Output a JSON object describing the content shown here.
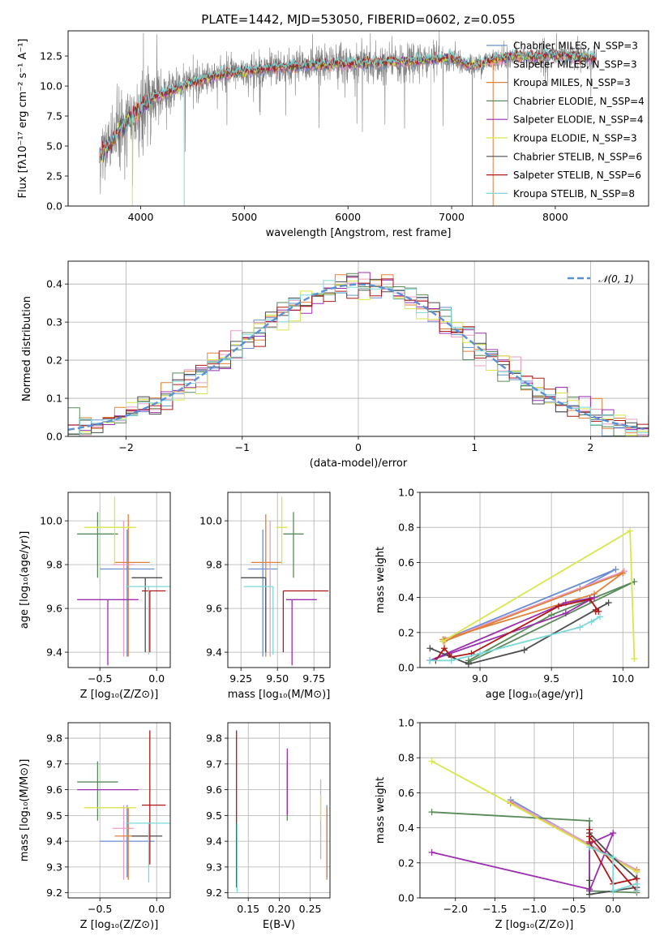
{
  "chart_data": [
    {
      "type": "line",
      "title": "PLATE=1442, MJD=53050, FIBERID=0602, z=0.055",
      "xlabel": "wavelength [Angstrom, rest frame]",
      "ylabel": "Flux [fλ10⁻¹⁷ erg cm⁻² s⁻¹ A⁻¹]",
      "xlim": [
        3300,
        8900
      ],
      "ylim": [
        0,
        14.6
      ],
      "xticks": [
        4000,
        5000,
        6000,
        7000,
        8000
      ],
      "yticks": [
        "0.0",
        "2.5",
        "5.0",
        "7.5",
        "10.0",
        "12.5"
      ],
      "grid": false,
      "legend_position": "right",
      "data_range_x": [
        3600,
        8400
      ],
      "spectrum_envelope": {
        "x": [
          3600,
          3700,
          3800,
          3900,
          4000,
          4100,
          4300,
          4500,
          4700,
          5000,
          5300,
          5600,
          5900,
          6200,
          6500,
          6800,
          7000,
          7200,
          7400,
          7600,
          7800,
          8000,
          8200,
          8400
        ],
        "y": [
          4.2,
          5.1,
          6.3,
          7.2,
          8.1,
          9.0,
          9.6,
          10.3,
          10.8,
          11.2,
          11.5,
          11.7,
          11.8,
          11.9,
          12.0,
          12.2,
          12.3,
          11.6,
          12.2,
          12.5,
          12.4,
          12.6,
          12.4,
          12.2
        ]
      },
      "series": [
        {
          "name": "Chabrier MILES, N_SSP=3",
          "color": "#6a8fd1"
        },
        {
          "name": "Salpeter MILES, N_SSP=3",
          "color": "#e89ec7"
        },
        {
          "name": "Kroupa MILES, N_SSP=3",
          "color": "#e0813a"
        },
        {
          "name": "Chabrier ELODIE, N_SSP=4",
          "color": "#5a8a5a"
        },
        {
          "name": "Salpeter ELODIE, N_SSP=4",
          "color": "#9b2fb0"
        },
        {
          "name": "Kroupa ELODIE, N_SSP=3",
          "color": "#d9e64a"
        },
        {
          "name": "Chabrier STELIB, N_SSP=6",
          "color": "#4d4d4d"
        },
        {
          "name": "Salpeter STELIB, N_SSP=6",
          "color": "#b01717"
        },
        {
          "name": "Kroupa STELIB, N_SSP=8",
          "color": "#7ad8d8"
        }
      ],
      "data_color": "#808080"
    },
    {
      "type": "line",
      "xlabel": "(data-model)/error",
      "ylabel": "Normed distribution",
      "xlim": [
        -2.5,
        2.5
      ],
      "ylim": [
        0,
        0.46
      ],
      "xticks": [
        "−2",
        "−1",
        "0",
        "1",
        "2"
      ],
      "yticks": [
        "0.0",
        "0.1",
        "0.2",
        "0.3",
        "0.4"
      ],
      "grid": true,
      "legend_position": "top-right",
      "legend": "𝒩(0, 1)",
      "bin_width": 0.1,
      "reference_curve": {
        "mean": 0,
        "sigma": 1,
        "color": "#5b8fd6"
      }
    },
    {
      "type": "scatter",
      "xlabel": "Z [log₁₀(Z/Z⊙)]",
      "ylabel": "age  [log₁₀(age/yr)]",
      "xlim": [
        -0.78,
        0.12
      ],
      "ylim": [
        9.33,
        10.13
      ],
      "xticks": [
        "−0.5",
        "0.0"
      ],
      "yticks": [
        "9.4",
        "9.6",
        "9.8",
        "10.0"
      ],
      "grid": true,
      "points": [
        {
          "series": "Chabrier MILES",
          "x": -0.26,
          "xerr": [
            0.24,
            0.24
          ],
          "y": 9.78,
          "yerr": [
            0.4,
            0.18
          ]
        },
        {
          "series": "Salpeter MILES",
          "x": -0.29,
          "xerr": [
            0.1,
            0.09
          ],
          "y": 9.8,
          "yerr": [
            0.42,
            0.2
          ]
        },
        {
          "series": "Kroupa MILES",
          "x": -0.25,
          "xerr": [
            0.12,
            0.19
          ],
          "y": 9.81,
          "yerr": [
            0.43,
            0.22
          ]
        },
        {
          "series": "Chabrier ELODIE",
          "x": -0.52,
          "xerr": [
            0.18,
            0.18
          ],
          "y": 9.94,
          "yerr": [
            0.2,
            0.1
          ]
        },
        {
          "series": "Salpeter ELODIE",
          "x": -0.43,
          "xerr": [
            0.27,
            0.27
          ],
          "y": 9.64,
          "yerr": [
            0.3,
            0.0
          ]
        },
        {
          "series": "Kroupa ELODIE",
          "x": -0.37,
          "xerr": [
            0.27,
            0.19
          ],
          "y": 9.97,
          "yerr": [
            0.17,
            0.14
          ]
        },
        {
          "series": "Chabrier STELIB",
          "x": -0.1,
          "xerr": [
            0.12,
            0.15
          ],
          "y": 9.74,
          "yerr": [
            0.34,
            0.0
          ]
        },
        {
          "series": "Salpeter STELIB",
          "x": -0.06,
          "xerr": [
            0.07,
            0.14
          ],
          "y": 9.68,
          "yerr": [
            0.28,
            0.0
          ]
        },
        {
          "series": "Kroupa STELIB",
          "x": -0.07,
          "xerr": [
            0.2,
            0.19
          ],
          "y": 9.7,
          "yerr": [
            0.31,
            0.0
          ]
        }
      ]
    },
    {
      "type": "scatter",
      "xlabel": "mass [log₁₀(M/M⊙)]",
      "ylabel": "",
      "xlim": [
        9.16,
        9.86
      ],
      "ylim": [
        9.33,
        10.13
      ],
      "xticks": [
        "9.25",
        "9.50",
        "9.75"
      ],
      "yticks": [
        "9.4",
        "9.6",
        "9.8",
        "10.0"
      ],
      "grid": true,
      "points": [
        {
          "series": "Chabrier MILES",
          "x": 9.4,
          "xerr": [
            0.1,
            0.1
          ],
          "y": 9.78,
          "yerr": [
            0.4,
            0.18
          ]
        },
        {
          "series": "Salpeter MILES",
          "x": 9.45,
          "xerr": [
            0.0,
            0.0
          ],
          "y": 9.8,
          "yerr": [
            0.42,
            0.2
          ]
        },
        {
          "series": "Kroupa MILES",
          "x": 9.42,
          "xerr": [
            0.1,
            0.11
          ],
          "y": 9.81,
          "yerr": [
            0.43,
            0.22
          ]
        },
        {
          "series": "Chabrier ELODIE",
          "x": 9.61,
          "xerr": [
            0.07,
            0.07
          ],
          "y": 9.94,
          "yerr": [
            0.2,
            0.1
          ]
        },
        {
          "series": "Salpeter ELODIE",
          "x": 9.6,
          "xerr": [
            0.04,
            0.17
          ],
          "y": 9.64,
          "yerr": [
            0.3,
            0.0
          ]
        },
        {
          "series": "Kroupa ELODIE",
          "x": 9.53,
          "xerr": [
            0.04,
            0.04
          ],
          "y": 9.97,
          "yerr": [
            0.17,
            0.14
          ]
        },
        {
          "series": "Chabrier STELIB",
          "x": 9.42,
          "xerr": [
            0.17,
            0.0
          ],
          "y": 9.74,
          "yerr": [
            0.34,
            0.0
          ]
        },
        {
          "series": "Salpeter STELIB",
          "x": 9.54,
          "xerr": [
            0.0,
            0.31
          ],
          "y": 9.68,
          "yerr": [
            0.28,
            0.0
          ]
        },
        {
          "series": "Kroupa STELIB",
          "x": 9.47,
          "xerr": [
            0.2,
            0.0
          ],
          "y": 9.7,
          "yerr": [
            0.31,
            0.0
          ]
        }
      ]
    },
    {
      "type": "line",
      "xlabel": "age  [log₁₀(age/yr)]",
      "ylabel": "mass weight",
      "xlim": [
        8.58,
        10.18
      ],
      "ylim": [
        0,
        1.0
      ],
      "xticks": [
        "9.0",
        "9.5",
        "10.0"
      ],
      "yticks": [
        "0.0",
        "0.2",
        "0.4",
        "0.6",
        "0.8",
        "1.0"
      ],
      "grid": true,
      "series": [
        {
          "name": "Chabrier MILES",
          "x": [
            8.75,
            9.95,
            9.7,
            8.74
          ],
          "y": [
            0.16,
            0.56,
            0.45,
            0.15
          ]
        },
        {
          "name": "Salpeter MILES",
          "x": [
            8.76,
            10.01
          ],
          "y": [
            0.16,
            0.55
          ]
        },
        {
          "name": "Kroupa MILES",
          "x": [
            8.75,
            10.0,
            9.8,
            8.74
          ],
          "y": [
            0.15,
            0.54,
            0.42,
            0.16
          ]
        },
        {
          "name": "Chabrier ELODIE",
          "x": [
            8.92,
            10.08,
            9.5,
            8.92
          ],
          "y": [
            0.03,
            0.49,
            0.3,
            0.04
          ]
        },
        {
          "name": "Salpeter ELODIE",
          "x": [
            8.65,
            9.6,
            9.8,
            9.6,
            8.65
          ],
          "y": [
            0.04,
            0.37,
            0.4,
            0.31,
            0.04
          ]
        },
        {
          "name": "Kroupa ELODIE",
          "x": [
            8.74,
            10.05,
            10.08
          ],
          "y": [
            0.15,
            0.78,
            0.05
          ]
        },
        {
          "name": "Chabrier STELIB",
          "x": [
            8.65,
            8.8,
            8.92,
            9.31,
            9.81,
            9.9
          ],
          "y": [
            0.11,
            0.06,
            0.02,
            0.1,
            0.33,
            0.37
          ]
        },
        {
          "name": "Salpeter STELIB",
          "x": [
            8.69,
            8.75,
            8.8,
            8.94,
            9.55,
            9.77,
            9.83,
            9.81
          ],
          "y": [
            0.04,
            0.11,
            0.06,
            0.08,
            0.35,
            0.39,
            0.32,
            0.32
          ]
        },
        {
          "name": "Kroupa STELIB",
          "x": [
            8.65,
            8.8,
            9.0,
            9.7,
            9.84,
            9.78
          ],
          "y": [
            0.04,
            0.04,
            0.08,
            0.23,
            0.29,
            0.26
          ]
        }
      ]
    },
    {
      "type": "scatter",
      "xlabel": "Z [log₁₀(Z/Z⊙)]",
      "ylabel": "mass [log₁₀(M/M⊙)]",
      "xlim": [
        -0.78,
        0.12
      ],
      "ylim": [
        9.18,
        9.86
      ],
      "xticks": [
        "−0.5",
        "0.0"
      ],
      "yticks": [
        "9.2",
        "9.3",
        "9.4",
        "9.5",
        "9.6",
        "9.7",
        "9.8"
      ],
      "grid": true,
      "points": [
        {
          "series": "Chabrier MILES",
          "x": -0.26,
          "xerr": [
            0.24,
            0.24
          ],
          "y": 9.4,
          "yerr": [
            0.14,
            0.14
          ]
        },
        {
          "series": "Salpeter MILES",
          "x": -0.29,
          "xerr": [
            0.1,
            0.09
          ],
          "y": 9.45,
          "yerr": [
            0.2,
            0.09
          ]
        },
        {
          "series": "Kroupa MILES",
          "x": -0.25,
          "xerr": [
            0.12,
            0.19
          ],
          "y": 9.42,
          "yerr": [
            0.17,
            0.11
          ]
        },
        {
          "series": "Chabrier ELODIE",
          "x": -0.52,
          "xerr": [
            0.18,
            0.18
          ],
          "y": 9.63,
          "yerr": [
            0.15,
            0.08
          ]
        },
        {
          "series": "Salpeter ELODIE",
          "x": -0.43,
          "xerr": [
            0.27,
            0.27
          ],
          "y": 9.6,
          "yerr": [
            0.0,
            0.0
          ]
        },
        {
          "series": "Kroupa ELODIE",
          "x": -0.37,
          "xerr": [
            0.27,
            0.19
          ],
          "y": 9.53,
          "yerr": [
            0.0,
            0.0
          ]
        },
        {
          "series": "Chabrier STELIB",
          "x": -0.1,
          "xerr": [
            0.12,
            0.15
          ],
          "y": 9.42,
          "yerr": [
            0.0,
            0.0
          ]
        },
        {
          "series": "Salpeter STELIB",
          "x": -0.06,
          "xerr": [
            0.07,
            0.14
          ],
          "y": 9.54,
          "yerr": [
            0.23,
            0.29
          ]
        },
        {
          "series": "Kroupa STELIB",
          "x": -0.07,
          "xerr": [
            0.2,
            0.19
          ],
          "y": 9.47,
          "yerr": [
            0.23,
            0.0
          ]
        }
      ]
    },
    {
      "type": "scatter",
      "xlabel": "E(B-V)",
      "ylabel": "",
      "xlim": [
        0.117,
        0.282
      ],
      "ylim": [
        9.18,
        9.86
      ],
      "xticks": [
        "0.15",
        "0.20",
        "0.25"
      ],
      "yticks": [
        "9.2",
        "9.3",
        "9.4",
        "9.5",
        "9.6",
        "9.7",
        "9.8"
      ],
      "grid": true,
      "points": [
        {
          "series": "Chabrier MILES",
          "x": 0.277,
          "y": 9.4,
          "yerr": [
            0.14,
            0.14
          ]
        },
        {
          "series": "Salpeter MILES",
          "x": 0.267,
          "y": 9.45,
          "yerr": [
            0.12,
            0.19
          ]
        },
        {
          "series": "Kroupa MILES",
          "x": 0.277,
          "y": 9.42,
          "yerr": [
            0.17,
            0.11
          ]
        },
        {
          "series": "Chabrier ELODIE",
          "x": 0.213,
          "y": 9.63,
          "yerr": [
            0.15,
            0.08
          ]
        },
        {
          "series": "Salpeter ELODIE",
          "x": 0.213,
          "y": 9.6,
          "yerr": [
            0.1,
            0.16
          ]
        },
        {
          "series": "Kroupa ELODIE",
          "x": 0.267,
          "y": 9.53,
          "yerr": [
            0.05,
            0.05
          ]
        },
        {
          "series": "Chabrier STELIB",
          "x": 0.131,
          "y": 9.42,
          "yerr": [
            0.2,
            0.0
          ]
        },
        {
          "series": "Salpeter STELIB",
          "x": 0.131,
          "y": 9.54,
          "yerr": [
            0.3,
            0.29
          ]
        },
        {
          "series": "Kroupa STELIB",
          "x": 0.132,
          "y": 9.47,
          "yerr": [
            0.27,
            0.0
          ]
        }
      ]
    },
    {
      "type": "line",
      "xlabel": "Z [log₁₀(Z/Z⊙)]",
      "ylabel": "mass weight",
      "xlim": [
        -2.45,
        0.45
      ],
      "ylim": [
        0,
        1.0
      ],
      "xticks": [
        "−2.0",
        "−1.5",
        "−1.0",
        "−0.5",
        "0.0"
      ],
      "yticks": [
        "0.0",
        "0.2",
        "0.4",
        "0.6",
        "0.8",
        "1.0"
      ],
      "grid": true,
      "series": [
        {
          "name": "Chabrier MILES",
          "x": [
            -1.3,
            0.3,
            0.3
          ],
          "y": [
            0.56,
            0.15,
            0.04
          ]
        },
        {
          "name": "Salpeter MILES",
          "x": [
            -1.3,
            0.3
          ],
          "y": [
            0.55,
            0.16
          ]
        },
        {
          "name": "Kroupa MILES",
          "x": [
            -1.3,
            0.3,
            0.3
          ],
          "y": [
            0.54,
            0.15,
            0.16
          ]
        },
        {
          "name": "Chabrier ELODIE",
          "x": [
            -2.3,
            -0.3,
            -0.3,
            0.3
          ],
          "y": [
            0.49,
            0.44,
            0.04,
            0.03
          ]
        },
        {
          "name": "Salpeter ELODIE",
          "x": [
            -2.3,
            -0.3,
            -0.3,
            0.0,
            -0.3
          ],
          "y": [
            0.26,
            0.05,
            0.31,
            0.37,
            0.04
          ]
        },
        {
          "name": "Kroupa ELODIE",
          "x": [
            -2.3,
            0.3
          ],
          "y": [
            0.78,
            0.15
          ]
        },
        {
          "name": "Chabrier STELIB",
          "x": [
            -0.3,
            0.0,
            0.3,
            0.3,
            -0.3,
            -0.3
          ],
          "y": [
            0.37,
            0.23,
            0.11,
            0.06,
            0.02,
            0.1
          ]
        },
        {
          "name": "Salpeter STELIB",
          "x": [
            -0.3,
            -0.3,
            0.0,
            0.3,
            0.3,
            -0.3
          ],
          "y": [
            0.39,
            0.32,
            0.08,
            0.11,
            0.04,
            0.35
          ]
        },
        {
          "name": "Kroupa STELIB",
          "x": [
            -0.3,
            0.0,
            0.0,
            0.3,
            0.3
          ],
          "y": [
            0.29,
            0.23,
            0.04,
            0.08,
            0.04
          ]
        }
      ]
    }
  ]
}
